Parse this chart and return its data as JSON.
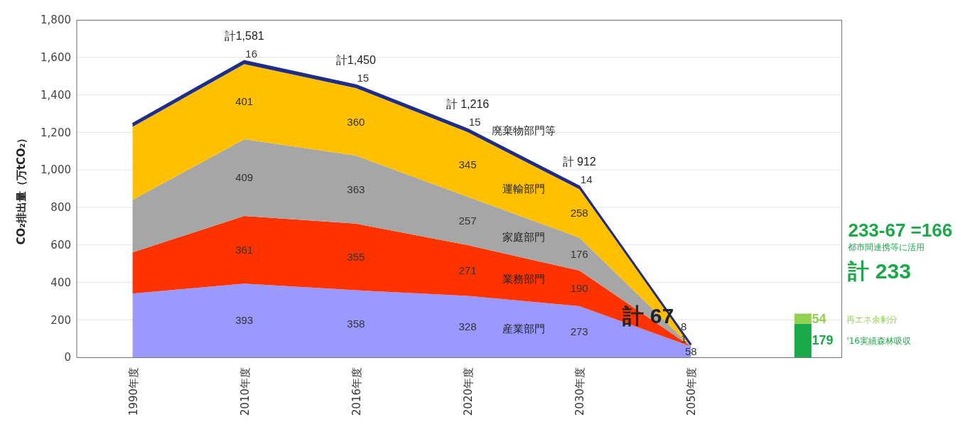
{
  "chart_data": {
    "type": "area",
    "ylabel": "CO₂排出量（万tCO₂）",
    "categories": [
      "1990年度",
      "2010年度",
      "2016年度",
      "2020年度",
      "2030年度",
      "2050年度",
      null
    ],
    "stacked": true,
    "grid": "y",
    "ylim": [
      0,
      1800
    ],
    "yticks": [
      0,
      200,
      400,
      600,
      800,
      {
        "value": 1000,
        "label": "1,000"
      },
      {
        "value": 1200,
        "label": "1,200"
      },
      {
        "value": 1400,
        "label": "1,400"
      },
      {
        "value": 1600,
        "label": "1,600"
      },
      {
        "value": 1800,
        "label": "1,800"
      }
    ],
    "series": [
      {
        "name": "産業部門",
        "color": "#9999ff",
        "values": [
          340,
          393,
          358,
          328,
          273,
          58,
          null
        ],
        "value_labels": [
          null,
          "393",
          "358",
          "328",
          "273",
          "58",
          null
        ]
      },
      {
        "name": "業務部門",
        "color": "#ff3300",
        "values": [
          220,
          361,
          355,
          271,
          190,
          0,
          null
        ],
        "value_labels": [
          null,
          "361",
          "355",
          "271",
          "190",
          null,
          null
        ]
      },
      {
        "name": "家庭部門",
        "color": "#a6a6a6",
        "values": [
          280,
          409,
          363,
          257,
          176,
          1,
          null
        ],
        "value_labels": [
          null,
          "409",
          "363",
          "257",
          "176",
          "1",
          null
        ]
      },
      {
        "name": "運輸部門",
        "color": "#ffc000",
        "values": [
          390,
          401,
          360,
          345,
          258,
          8,
          null
        ],
        "value_labels": [
          null,
          "401",
          "360",
          "345",
          "258",
          "8",
          null
        ]
      },
      {
        "name": "廃棄物部門等",
        "color": "#1f2d8a",
        "values": [
          15,
          16,
          15,
          15,
          14,
          0,
          null
        ],
        "value_labels": [
          null,
          "16",
          "15",
          "15",
          "14",
          null,
          null
        ]
      },
      {
        "type": "bar",
        "name": "'16実績森林吸収",
        "color": "#1aa849",
        "values": [
          null,
          null,
          null,
          null,
          null,
          null,
          179
        ],
        "value_labels": [
          null,
          null,
          null,
          null,
          null,
          null,
          "179"
        ]
      },
      {
        "type": "bar",
        "name": "再エネ余剰分",
        "color": "#92d050",
        "values": [
          null,
          null,
          null,
          null,
          null,
          null,
          54
        ],
        "value_labels": [
          null,
          null,
          null,
          null,
          null,
          null,
          "54"
        ]
      }
    ],
    "totals": [
      null,
      "計1,581",
      "計1,450",
      "計 1,216",
      "計 912",
      "計 67",
      "計 233"
    ],
    "annotations": [
      "233-67 =166",
      "都市間連携等に活用"
    ]
  }
}
